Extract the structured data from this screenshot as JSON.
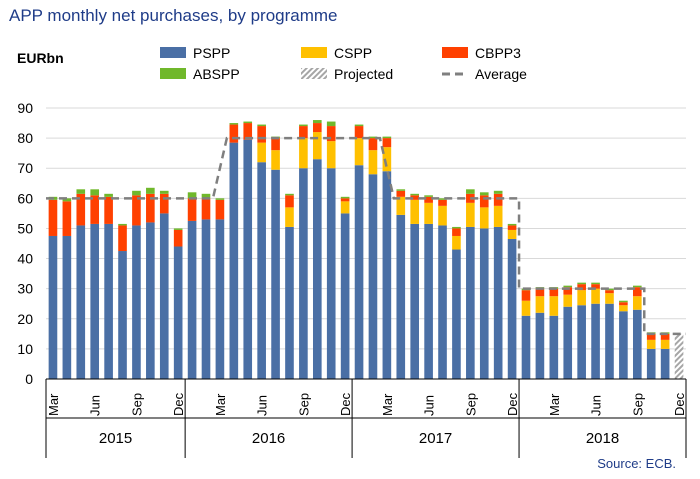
{
  "chart_data": {
    "type": "bar",
    "stacked": true,
    "title": "APP monthly net purchases, by programme",
    "unit_label": "EURbn",
    "source": "Source: ECB.",
    "ylim": [
      0,
      90
    ],
    "yticks": [
      0,
      10,
      20,
      30,
      40,
      50,
      60,
      70,
      80,
      90
    ],
    "grid": true,
    "legend_position": "top",
    "month_labels": [
      "Mar",
      "Jun",
      "Sep",
      "Dec"
    ],
    "years": [
      "2015",
      "2016",
      "2017",
      "2018"
    ],
    "categories": [
      "2015-03",
      "2015-04",
      "2015-05",
      "2015-06",
      "2015-07",
      "2015-08",
      "2015-09",
      "2015-10",
      "2015-11",
      "2015-12",
      "2016-01",
      "2016-02",
      "2016-03",
      "2016-04",
      "2016-05",
      "2016-06",
      "2016-07",
      "2016-08",
      "2016-09",
      "2016-10",
      "2016-11",
      "2016-12",
      "2017-01",
      "2017-02",
      "2017-03",
      "2017-04",
      "2017-05",
      "2017-06",
      "2017-07",
      "2017-08",
      "2017-09",
      "2017-10",
      "2017-11",
      "2017-12",
      "2018-01",
      "2018-02",
      "2018-03",
      "2018-04",
      "2018-05",
      "2018-06",
      "2018-07",
      "2018-08",
      "2018-09",
      "2018-10",
      "2018-11",
      "2018-12"
    ],
    "series": [
      {
        "name": "PSPP",
        "color": "#4a6fa5",
        "values": [
          47.5,
          47.5,
          51,
          51.5,
          51.5,
          42.5,
          51,
          52,
          55,
          44,
          52.5,
          53,
          53,
          78.5,
          79.5,
          72,
          69.5,
          50.5,
          70,
          73,
          70,
          55,
          71,
          68,
          69,
          54.5,
          51.5,
          51.5,
          51,
          43,
          50.5,
          50,
          50.5,
          46.5,
          21,
          22,
          21,
          24,
          24.5,
          25,
          25,
          22.5,
          23,
          10,
          10,
          0
        ]
      },
      {
        "name": "CSPP",
        "color": "#ffc000",
        "values": [
          0,
          0,
          0,
          0,
          0,
          0,
          0,
          0,
          0,
          0,
          0,
          0,
          0,
          0,
          0,
          6.5,
          6.5,
          6.5,
          10,
          9,
          9,
          4,
          9,
          8,
          8,
          6,
          8,
          7,
          6.5,
          4.5,
          8,
          7,
          7,
          3,
          5,
          5.5,
          6.5,
          4,
          5,
          5,
          3.5,
          2,
          4.5,
          3,
          3,
          0
        ]
      },
      {
        "name": "CBPP3",
        "color": "#ff4000",
        "values": [
          12,
          11.5,
          10.5,
          9.5,
          9,
          8.5,
          10,
          9.5,
          6.5,
          5.5,
          7.5,
          7,
          6.5,
          6,
          5.5,
          5.5,
          4,
          4,
          4,
          3,
          5,
          1,
          4,
          4,
          3,
          2,
          1.5,
          2,
          2,
          2.5,
          3,
          4,
          4,
          1.5,
          3.5,
          2.5,
          2.5,
          2.5,
          2,
          1.5,
          1,
          1,
          3,
          2,
          2,
          0
        ]
      },
      {
        "name": "ABSPP",
        "color": "#70b82b",
        "values": [
          1,
          1,
          1.5,
          2,
          1,
          0.5,
          1.5,
          2,
          1,
          0.5,
          2,
          1.5,
          0.5,
          0.5,
          0.5,
          0.5,
          0.5,
          0.5,
          0.5,
          1,
          1.5,
          0.5,
          0.5,
          0.5,
          0.5,
          0.5,
          0.5,
          0.5,
          0.5,
          0.5,
          1.5,
          1,
          1,
          0.5,
          0.5,
          0.5,
          0.5,
          0.5,
          0.5,
          0.5,
          0.5,
          0.5,
          0.5,
          0.5,
          0.5,
          0
        ]
      },
      {
        "name": "Projected",
        "color": "#a6a6a6",
        "values": [
          0,
          0,
          0,
          0,
          0,
          0,
          0,
          0,
          0,
          0,
          0,
          0,
          0,
          0,
          0,
          0,
          0,
          0,
          0,
          0,
          0,
          0,
          0,
          0,
          0,
          0,
          0,
          0,
          0,
          0,
          0,
          0,
          0,
          0,
          0,
          0,
          0,
          0,
          0,
          0,
          0,
          0,
          0,
          0,
          0,
          15
        ]
      }
    ],
    "average": {
      "name": "Average",
      "color": "#7f7f7f",
      "segments": [
        {
          "from": "2015-03",
          "to": "2016-02",
          "value": 60
        },
        {
          "from": "2016-04",
          "to": "2017-02",
          "value": 80
        },
        {
          "from": "2017-04",
          "to": "2017-12",
          "value": 60
        },
        {
          "from": "2018-01",
          "to": "2018-09",
          "value": 30
        },
        {
          "from": "2018-10",
          "to": "2018-12",
          "value": 15
        }
      ]
    }
  }
}
